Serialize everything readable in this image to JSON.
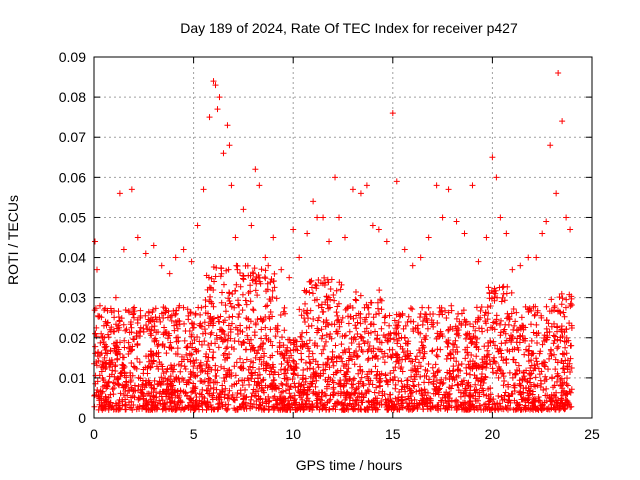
{
  "chart_data": {
    "type": "scatter",
    "title": "Day 189 of 2024, Rate Of TEC Index for receiver p427",
    "xlabel": "GPS time / hours",
    "ylabel": "ROTI / TECUs",
    "xlim": [
      0,
      25
    ],
    "ylim": [
      0,
      0.09
    ],
    "xticks": [
      0,
      5,
      10,
      15,
      20,
      25
    ],
    "xtick_labels": [
      "0",
      "5",
      "10",
      "15",
      "20",
      "25"
    ],
    "yticks": [
      0,
      0.01,
      0.02,
      0.03,
      0.04,
      0.05,
      0.06,
      0.07,
      0.08,
      0.09
    ],
    "ytick_labels": [
      "0",
      "0.01",
      "0.02",
      "0.03",
      "0.04",
      "0.05",
      "0.06",
      "0.07",
      "0.08",
      "0.09"
    ],
    "grid": true,
    "marker": "+",
    "color": "#ff0000",
    "series": [
      {
        "name": "ROTI",
        "x": [
          0.05,
          0.15,
          0.3,
          0.5,
          0.8,
          1.1,
          1.3,
          1.5,
          1.9,
          2.2,
          2.6,
          3.0,
          3.4,
          3.8,
          4.1,
          4.5,
          4.9,
          5.2,
          5.5,
          5.8,
          6.0,
          6.1,
          6.2,
          6.3,
          6.5,
          6.7,
          6.8,
          6.9,
          7.1,
          7.5,
          7.9,
          8.1,
          8.3,
          8.6,
          9.0,
          9.4,
          9.8,
          10.0,
          10.3,
          10.7,
          11.0,
          11.2,
          11.5,
          11.8,
          12.1,
          12.3,
          12.6,
          13.0,
          13.4,
          13.7,
          14.0,
          14.3,
          14.7,
          15.0,
          15.2,
          15.6,
          16.0,
          16.4,
          16.8,
          17.2,
          17.5,
          17.8,
          18.2,
          18.6,
          19.0,
          19.3,
          19.7,
          20.0,
          20.2,
          20.4,
          20.7,
          21.0,
          21.4,
          21.8,
          22.2,
          22.5,
          22.7,
          22.9,
          23.2,
          23.3,
          23.5,
          23.7,
          23.9
        ],
        "y": [
          0.044,
          0.037,
          0.028,
          0.023,
          0.022,
          0.03,
          0.056,
          0.042,
          0.057,
          0.045,
          0.041,
          0.043,
          0.038,
          0.036,
          0.04,
          0.042,
          0.039,
          0.048,
          0.057,
          0.075,
          0.084,
          0.083,
          0.077,
          0.08,
          0.066,
          0.073,
          0.068,
          0.058,
          0.045,
          0.052,
          0.048,
          0.062,
          0.058,
          0.04,
          0.045,
          0.037,
          0.035,
          0.047,
          0.04,
          0.046,
          0.054,
          0.05,
          0.05,
          0.044,
          0.06,
          0.05,
          0.045,
          0.057,
          0.056,
          0.058,
          0.048,
          0.047,
          0.044,
          0.076,
          0.059,
          0.042,
          0.038,
          0.04,
          0.045,
          0.058,
          0.05,
          0.057,
          0.049,
          0.046,
          0.058,
          0.039,
          0.045,
          0.065,
          0.06,
          0.05,
          0.046,
          0.037,
          0.038,
          0.04,
          0.04,
          0.046,
          0.049,
          0.068,
          0.056,
          0.086,
          0.074,
          0.05,
          0.047
        ]
      }
    ]
  }
}
